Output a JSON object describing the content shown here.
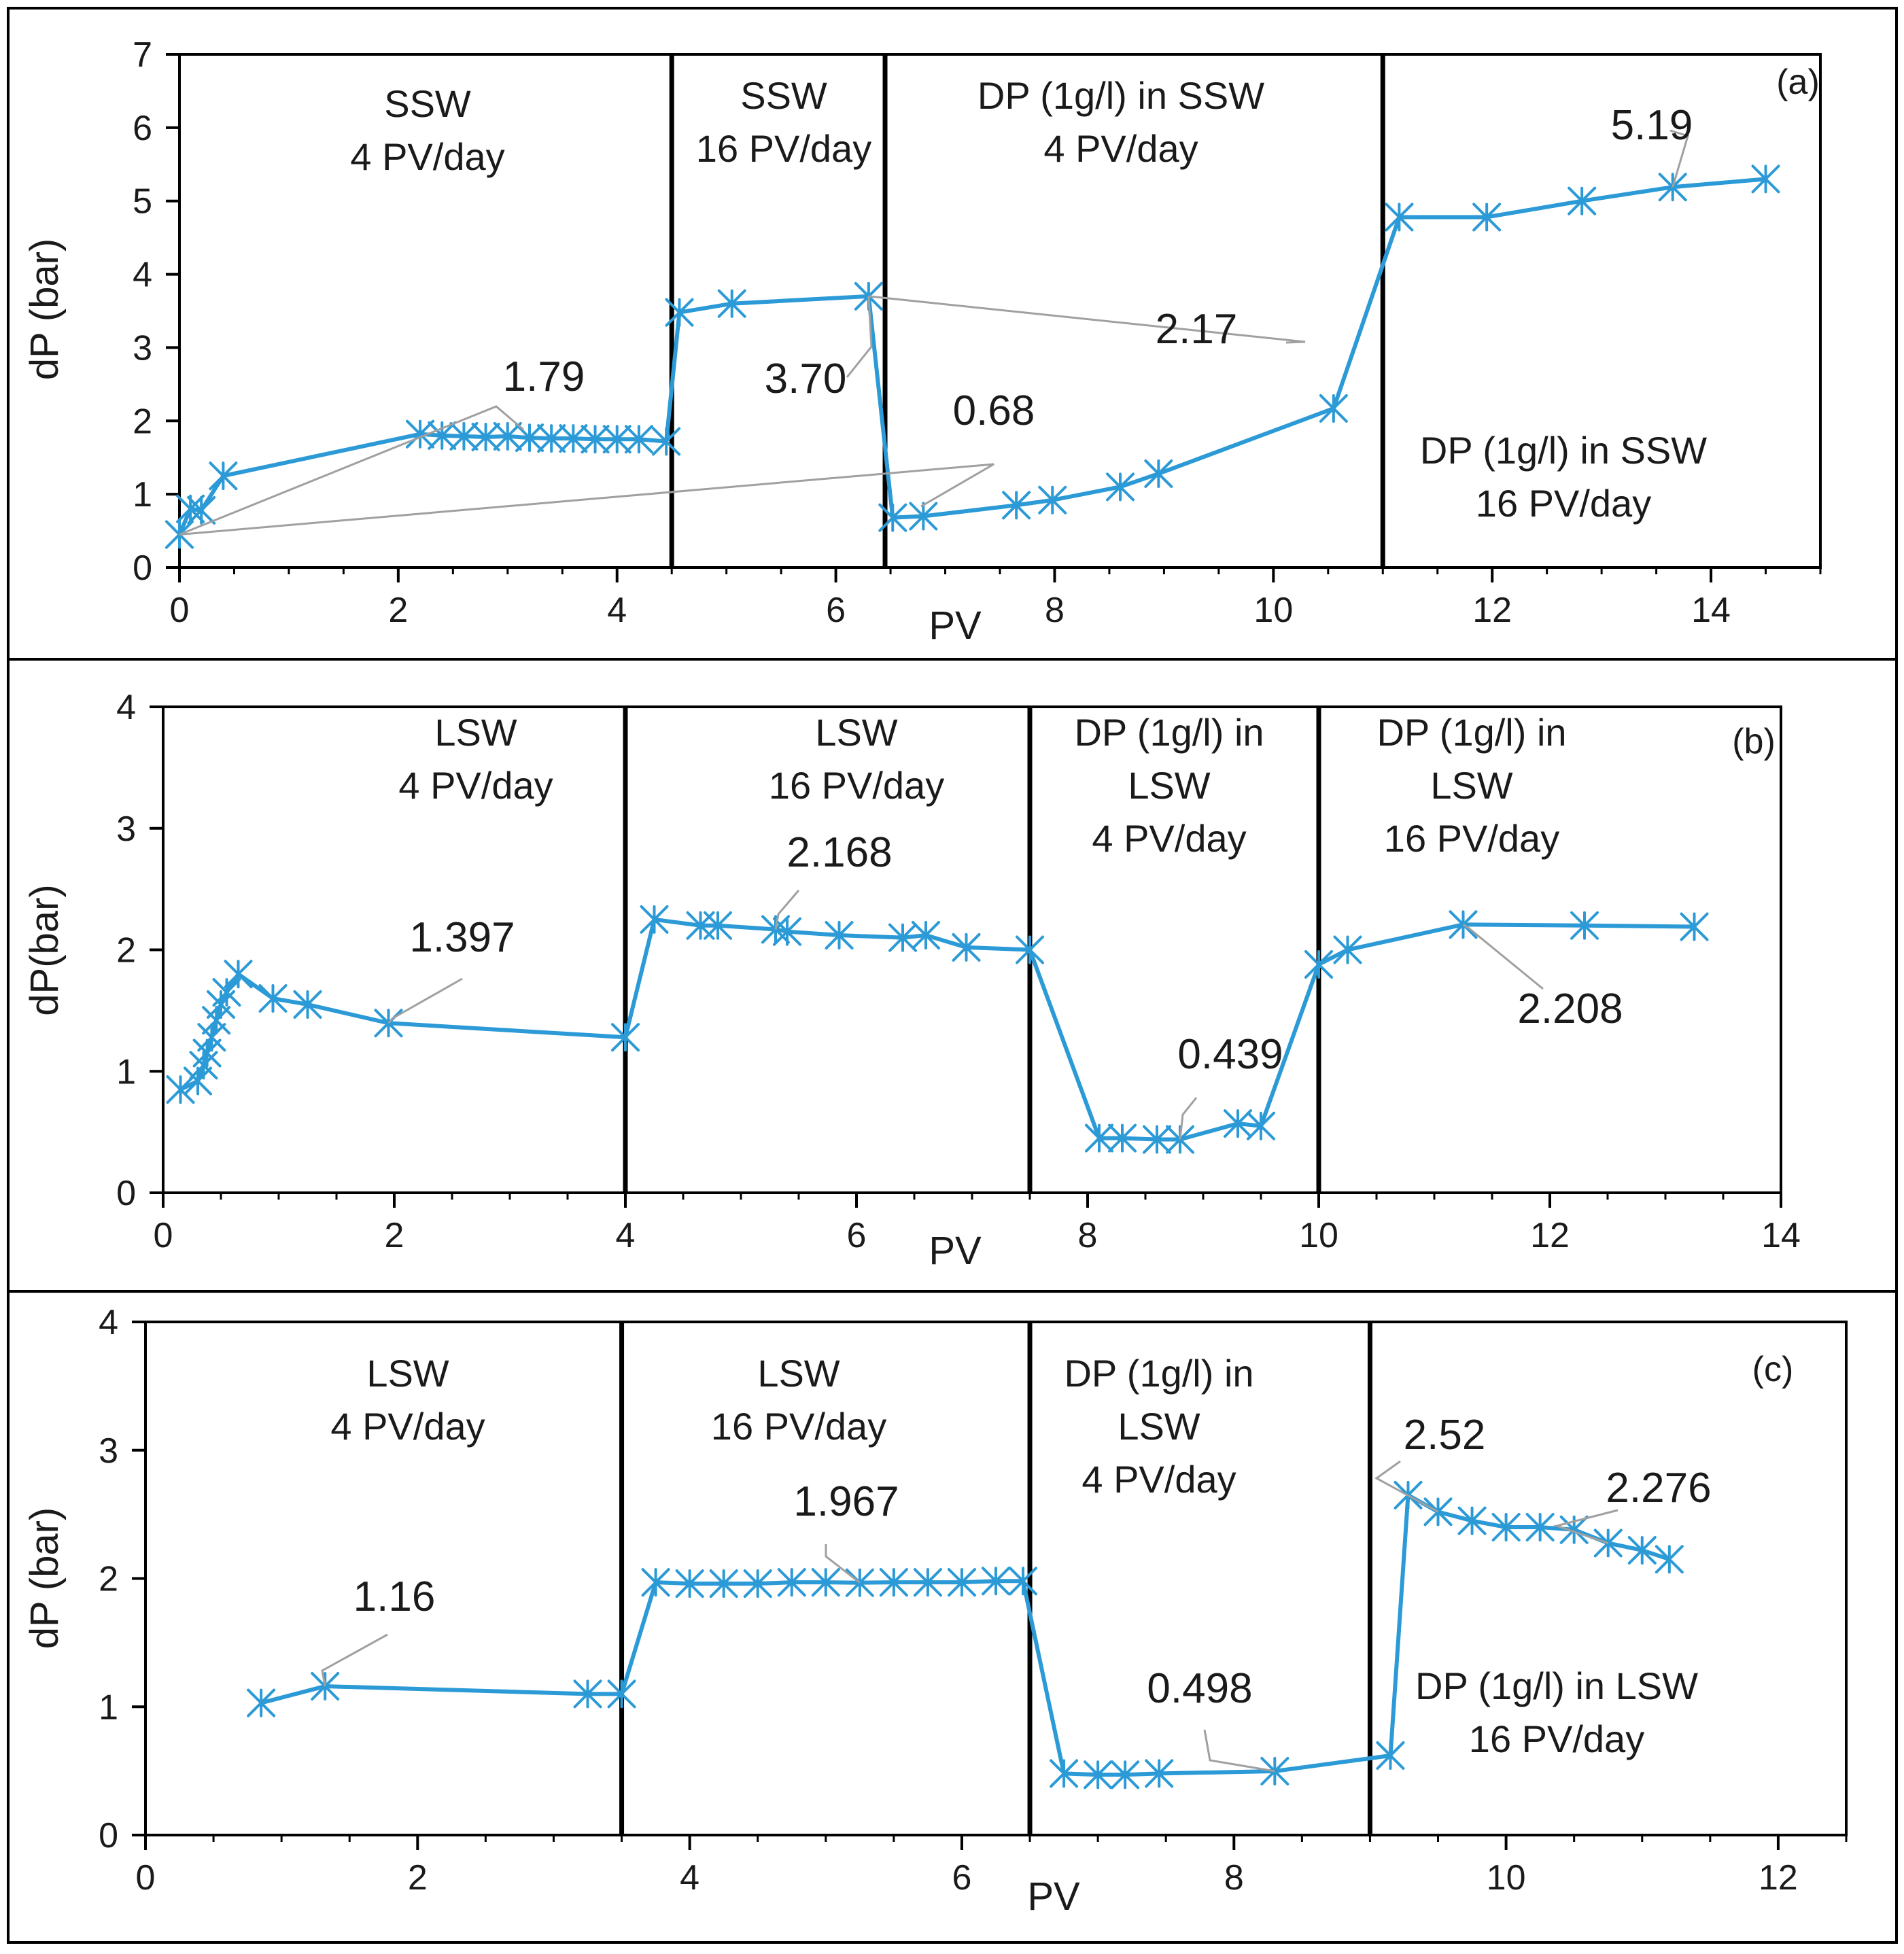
{
  "colors": {
    "series": "#2b9ad6",
    "axis": "#000000",
    "leader": "#a0a0a0",
    "border": "#000000"
  },
  "chart_data": [
    {
      "type": "line",
      "panel_label": "(a)",
      "xlabel": "PV",
      "ylabel": "dP (bar)",
      "xlim": [
        0,
        15
      ],
      "ylim": [
        0,
        7
      ],
      "xticks": [
        0,
        2,
        4,
        6,
        8,
        10,
        12,
        14
      ],
      "yticks": [
        0,
        1,
        2,
        3,
        4,
        5,
        6,
        7
      ],
      "grid": false,
      "marker": "asterisk",
      "dividers": [
        4.5,
        6.45,
        11.0
      ],
      "regions": [
        {
          "lines": [
            "SSW",
            "4 PV/day"
          ]
        },
        {
          "lines": [
            "SSW",
            "16 PV/day"
          ]
        },
        {
          "lines": [
            "DP (1g/l) in SSW",
            "4 PV/day"
          ]
        },
        {
          "lines": [
            "DP (1g/l) in SSW",
            "16 PV/day"
          ]
        }
      ],
      "series": [
        {
          "x": [
            0.0,
            0.1,
            0.2,
            0.4,
            2.2,
            2.4,
            2.6,
            2.8,
            3.0,
            3.2,
            3.4,
            3.6,
            3.8,
            4.0,
            4.2,
            4.45,
            4.57,
            5.05,
            6.3,
            6.52,
            6.8,
            7.65,
            7.98,
            8.6,
            8.95,
            10.55,
            11.15,
            11.95,
            12.82,
            13.65,
            14.5
          ],
          "y": [
            0.45,
            0.8,
            0.78,
            1.25,
            1.82,
            1.8,
            1.79,
            1.78,
            1.79,
            1.77,
            1.76,
            1.76,
            1.75,
            1.75,
            1.75,
            1.72,
            3.48,
            3.6,
            3.7,
            0.68,
            0.7,
            0.85,
            0.92,
            1.1,
            1.28,
            2.17,
            4.78,
            4.78,
            5.0,
            5.19,
            5.3
          ]
        }
      ],
      "annotations": [
        {
          "text": "1.79"
        },
        {
          "text": "3.70"
        },
        {
          "text": "0.68"
        },
        {
          "text": "2.17"
        },
        {
          "text": "5.19"
        }
      ]
    },
    {
      "type": "line",
      "panel_label": "(b)",
      "xlabel": "PV",
      "ylabel": "dP(bar)",
      "xlim": [
        0,
        14
      ],
      "ylim": [
        0,
        4
      ],
      "xticks": [
        0,
        2,
        4,
        6,
        8,
        10,
        12,
        14
      ],
      "yticks": [
        0,
        1,
        2,
        3,
        4
      ],
      "grid": false,
      "marker": "asterisk",
      "dividers": [
        4.0,
        7.5,
        10.0
      ],
      "regions": [
        {
          "lines": [
            "LSW",
            "4 PV/day"
          ]
        },
        {
          "lines": [
            "LSW",
            "16 PV/day"
          ]
        },
        {
          "lines": [
            "DP (1g/l) in",
            "LSW",
            "4 PV/day"
          ]
        },
        {
          "lines": [
            "DP (1g/l) in",
            "LSW",
            "16 PV/day"
          ]
        }
      ],
      "series": [
        {
          "x": [
            0.15,
            0.3,
            0.35,
            0.38,
            0.42,
            0.46,
            0.5,
            0.55,
            0.65,
            0.95,
            1.25,
            1.95,
            4.0,
            4.25,
            4.65,
            4.8,
            5.3,
            5.4,
            5.85,
            6.4,
            6.6,
            6.95,
            7.5,
            8.1,
            8.3,
            8.6,
            8.8,
            9.3,
            9.5,
            10.0,
            10.25,
            11.25,
            12.3,
            13.25
          ],
          "y": [
            0.85,
            0.92,
            1.05,
            1.15,
            1.28,
            1.42,
            1.55,
            1.65,
            1.8,
            1.6,
            1.55,
            1.397,
            1.28,
            2.25,
            2.2,
            2.2,
            2.168,
            2.15,
            2.12,
            2.1,
            2.12,
            2.02,
            2.0,
            0.45,
            0.45,
            0.439,
            0.439,
            0.57,
            0.55,
            1.88,
            2.0,
            2.208,
            2.2,
            2.19
          ]
        }
      ],
      "annotations": [
        {
          "text": "1.397"
        },
        {
          "text": "2.168"
        },
        {
          "text": "0.439"
        },
        {
          "text": "2.208"
        }
      ]
    },
    {
      "type": "line",
      "panel_label": "(c)",
      "xlabel": "PV",
      "ylabel": "dP (bar)",
      "xlim": [
        0,
        12.5
      ],
      "ylim": [
        0,
        4
      ],
      "xticks": [
        0,
        2,
        4,
        6,
        8,
        10,
        12
      ],
      "yticks": [
        0,
        1,
        2,
        3,
        4
      ],
      "grid": false,
      "marker": "asterisk",
      "dividers": [
        3.5,
        6.5,
        9.0
      ],
      "regions": [
        {
          "lines": [
            "LSW",
            "4 PV/day"
          ]
        },
        {
          "lines": [
            "LSW",
            "16 PV/day"
          ]
        },
        {
          "lines": [
            "DP (1g/l) in",
            "LSW",
            "4 PV/day"
          ]
        },
        {
          "lines": [
            "DP (1g/l) in LSW",
            "16 PV/day"
          ]
        }
      ],
      "series": [
        {
          "x": [
            0.85,
            1.32,
            3.25,
            3.5,
            3.75,
            4.0,
            4.25,
            4.5,
            4.75,
            5.0,
            5.25,
            5.5,
            5.75,
            6.0,
            6.25,
            6.45,
            6.75,
            7.0,
            7.2,
            7.45,
            8.3,
            9.15,
            9.28,
            9.5,
            9.75,
            10.0,
            10.25,
            10.5,
            10.75,
            11.0,
            11.2
          ],
          "y": [
            1.03,
            1.16,
            1.1,
            1.1,
            1.97,
            1.96,
            1.96,
            1.96,
            1.97,
            1.97,
            1.967,
            1.97,
            1.97,
            1.97,
            1.98,
            1.98,
            0.48,
            0.47,
            0.47,
            0.48,
            0.498,
            0.62,
            2.65,
            2.52,
            2.45,
            2.4,
            2.4,
            2.38,
            2.276,
            2.22,
            2.15
          ]
        }
      ],
      "annotations": [
        {
          "text": "1.16"
        },
        {
          "text": "1.967"
        },
        {
          "text": "0.498"
        },
        {
          "text": "2.52"
        },
        {
          "text": "2.276"
        }
      ]
    }
  ]
}
